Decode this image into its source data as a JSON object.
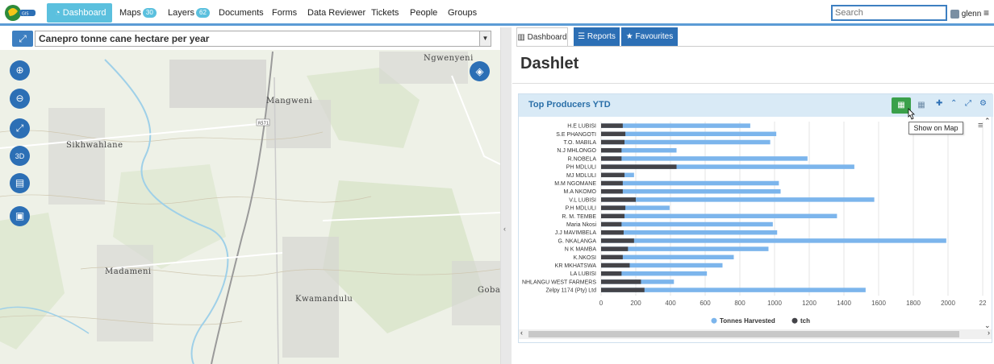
{
  "nav": {
    "logo_text": "GIS",
    "dashboard": "Dashboard",
    "maps": "Maps",
    "maps_count": "30",
    "layers": "Layers",
    "layers_count": "62",
    "documents": "Documents",
    "forms": "Forms",
    "data_reviewer": "Data Reviewer",
    "tickets": "Tickets",
    "people": "People",
    "groups": "Groups",
    "search_placeholder": "Search",
    "user": "glenn"
  },
  "map": {
    "layer_name": "Canepro tonne cane hectare per year",
    "road_label": "R571",
    "places": [
      "Ngwenyeni",
      "Mangweni",
      "Sikhwahlane",
      "Madameni",
      "Kwamandulu",
      "Goba"
    ]
  },
  "right": {
    "tabs": [
      "Dashboard",
      "Reports",
      "Favourites"
    ],
    "title": "Dashlet",
    "widget_title": "Top Producers YTD",
    "tooltip": "Show on Map"
  },
  "chart_data": {
    "type": "bar",
    "orientation": "horizontal",
    "stacked": false,
    "categories": [
      "H.E LUBISI",
      "S.E PHANGOTI",
      "T.O. MABILA",
      "N.J MHLONGO",
      "R.NOBELA",
      "PH MDLULI",
      "MJ MDLULI",
      "M.M NGOMANE",
      "M.A NKOMO",
      "V.L LUBISI",
      "P.H MDLULI",
      "R. M. TEMBE",
      "Maria Nkosi",
      "J.J MAVIMBELA",
      "G. NKALANGA",
      "N K MAMBA",
      "K.NKOSI",
      "KR MKHATSWA",
      "LA LUBISI",
      "NHLANGU WEST FARMERS",
      "Zelpy 1174 (Pty) Ltd"
    ],
    "series": [
      {
        "name": "Tonnes Harvested",
        "color": "#7cb5ec",
        "values": [
          860,
          1010,
          975,
          435,
          1190,
          1460,
          190,
          1025,
          1035,
          1575,
          395,
          1360,
          990,
          1015,
          1990,
          965,
          765,
          700,
          610,
          420,
          1525
        ]
      },
      {
        "name": "tch",
        "color": "#434348",
        "values": [
          125,
          140,
          135,
          118,
          118,
          435,
          135,
          125,
          125,
          200,
          140,
          135,
          118,
          130,
          190,
          155,
          125,
          165,
          118,
          230,
          250
        ]
      }
    ],
    "xlim": [
      0,
      2200
    ],
    "xticks": [
      "0",
      "200",
      "400",
      "600",
      "800",
      "1000",
      "1200",
      "1400",
      "1600",
      "1800",
      "2000",
      "22"
    ],
    "grid": true,
    "legend_position": "bottom"
  }
}
